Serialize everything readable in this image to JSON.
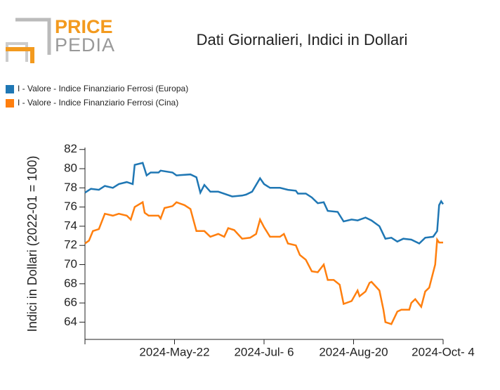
{
  "logo": {
    "top": "PRICE",
    "bottom": "PEDIA"
  },
  "chart_data": {
    "type": "line",
    "title": "Dati Giornalieri, Indici in Dollari",
    "y_label": "Indici in Dollari (2022-01 = 100)",
    "xlim": [
      "2024-04-07",
      "2024-10-04"
    ],
    "xticks": [
      {
        "value": "2024-05-22",
        "label": "2024-May-22"
      },
      {
        "value": "2024-07-06",
        "label": "2024-Jul- 6"
      },
      {
        "value": "2024-08-20",
        "label": "2024-Aug-20"
      },
      {
        "value": "2024-10-04",
        "label": "2024-Oct- 4"
      }
    ],
    "ylim": [
      62.2,
      82.2
    ],
    "yticks": [
      64,
      66,
      68,
      70,
      72,
      74,
      76,
      78,
      80,
      82
    ],
    "series": [
      {
        "name": "I - Valore - Indice Finanziario Ferrosi (Europa)",
        "color": "#1f77b4",
        "x": [
          "2024-04-07",
          "2024-04-10",
          "2024-04-14",
          "2024-04-17",
          "2024-04-21",
          "2024-04-24",
          "2024-04-28",
          "2024-05-01",
          "2024-05-02",
          "2024-05-06",
          "2024-05-08",
          "2024-05-10",
          "2024-05-14",
          "2024-05-15",
          "2024-05-21",
          "2024-05-23",
          "2024-05-30",
          "2024-06-02",
          "2024-06-04",
          "2024-06-06",
          "2024-06-09",
          "2024-06-13",
          "2024-06-20",
          "2024-06-25",
          "2024-06-27",
          "2024-06-30",
          "2024-07-04",
          "2024-07-06",
          "2024-07-09",
          "2024-07-14",
          "2024-07-18",
          "2024-07-22",
          "2024-07-23",
          "2024-07-27",
          "2024-07-30",
          "2024-08-02",
          "2024-08-05",
          "2024-08-07",
          "2024-08-12",
          "2024-08-15",
          "2024-08-19",
          "2024-08-22",
          "2024-08-26",
          "2024-08-29",
          "2024-09-02",
          "2024-09-05",
          "2024-09-08",
          "2024-09-11",
          "2024-09-14",
          "2024-09-18",
          "2024-09-22",
          "2024-09-25",
          "2024-09-29",
          "2024-10-01",
          "2024-10-02",
          "2024-10-03",
          "2024-10-04"
        ],
        "values": [
          77.5,
          77.9,
          77.8,
          78.2,
          78.0,
          78.4,
          78.6,
          78.4,
          80.4,
          80.6,
          79.3,
          79.6,
          79.6,
          79.8,
          79.6,
          79.3,
          79.4,
          79.1,
          77.5,
          78.3,
          77.6,
          77.6,
          77.1,
          77.2,
          77.3,
          77.6,
          79.0,
          78.4,
          78.0,
          78.0,
          77.8,
          77.7,
          77.4,
          77.4,
          77.0,
          76.4,
          76.5,
          75.6,
          75.5,
          74.5,
          74.7,
          74.6,
          74.9,
          74.6,
          74.0,
          72.7,
          72.8,
          72.4,
          72.7,
          72.6,
          72.2,
          72.8,
          72.9,
          73.5,
          76.2,
          76.6,
          76.3
        ]
      },
      {
        "name": "I - Valore - Indice Finanziario Ferrosi (Cina)",
        "color": "#ff7f0e",
        "x": [
          "2024-04-07",
          "2024-04-09",
          "2024-04-11",
          "2024-04-14",
          "2024-04-17",
          "2024-04-21",
          "2024-04-24",
          "2024-04-28",
          "2024-04-30",
          "2024-05-02",
          "2024-05-06",
          "2024-05-07",
          "2024-05-09",
          "2024-05-14",
          "2024-05-15",
          "2024-05-17",
          "2024-05-21",
          "2024-05-23",
          "2024-05-27",
          "2024-05-30",
          "2024-06-02",
          "2024-06-06",
          "2024-06-09",
          "2024-06-13",
          "2024-06-16",
          "2024-06-18",
          "2024-06-21",
          "2024-06-25",
          "2024-06-29",
          "2024-07-02",
          "2024-07-04",
          "2024-07-06",
          "2024-07-09",
          "2024-07-14",
          "2024-07-16",
          "2024-07-18",
          "2024-07-22",
          "2024-07-24",
          "2024-07-27",
          "2024-07-30",
          "2024-08-02",
          "2024-08-05",
          "2024-08-07",
          "2024-08-10",
          "2024-08-13",
          "2024-08-15",
          "2024-08-19",
          "2024-08-22",
          "2024-08-23",
          "2024-08-26",
          "2024-08-28",
          "2024-08-29",
          "2024-09-02",
          "2024-09-04",
          "2024-09-05",
          "2024-09-08",
          "2024-09-11",
          "2024-09-13",
          "2024-09-17",
          "2024-09-18",
          "2024-09-20",
          "2024-09-23",
          "2024-09-25",
          "2024-09-27",
          "2024-09-30",
          "2024-10-01",
          "2024-10-02",
          "2024-10-04"
        ],
        "values": [
          72.2,
          72.5,
          73.5,
          73.7,
          75.3,
          75.1,
          75.3,
          75.1,
          74.7,
          76.0,
          76.5,
          75.4,
          75.1,
          75.1,
          74.8,
          75.9,
          76.1,
          76.5,
          76.2,
          75.8,
          73.5,
          73.5,
          72.9,
          73.2,
          72.9,
          73.8,
          73.6,
          72.7,
          72.8,
          73.2,
          74.7,
          73.9,
          72.9,
          72.9,
          73.2,
          72.2,
          72.0,
          71.0,
          70.5,
          69.3,
          69.2,
          70.0,
          68.4,
          68.4,
          67.9,
          65.9,
          66.2,
          67.3,
          66.7,
          67.2,
          68.1,
          68.2,
          67.3,
          65.3,
          64.0,
          63.8,
          65.1,
          65.3,
          65.3,
          66.0,
          66.4,
          65.6,
          67.2,
          67.6,
          70.0,
          72.6,
          72.3,
          72.3
        ]
      }
    ]
  }
}
